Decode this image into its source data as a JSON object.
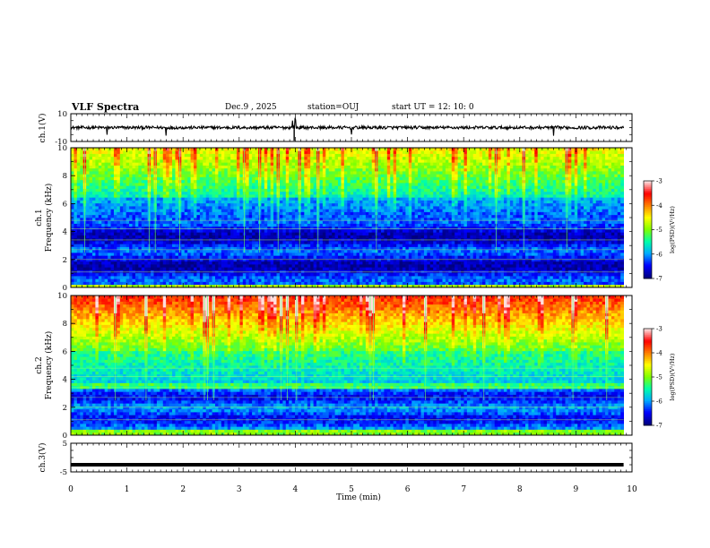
{
  "header": {
    "title": "VLF Spectra",
    "date": "Dec.9 , 2025",
    "station": "station=OUJ",
    "start": "start UT =  12: 10: 0"
  },
  "chart_data": [
    {
      "type": "line",
      "name": "ch1-waveform",
      "ylabel": "ch.1(V)",
      "ylim": [
        -10,
        10
      ],
      "yticks": [
        10,
        -10
      ],
      "xlim": [
        0,
        10
      ],
      "level": 0,
      "spikes_min": [
        3.95,
        4.0,
        5.0,
        0.65,
        1.7,
        8.6
      ]
    },
    {
      "type": "heatmap",
      "name": "ch1-spectrogram",
      "ylabel": "ch.1 Frequency (kHz)",
      "ylim": [
        0,
        10
      ],
      "yticks": [
        0,
        2,
        4,
        6,
        8,
        10
      ],
      "xlim": [
        0,
        9.85
      ],
      "colorbar": {
        "label": "log(PSD)(V²/Hz)",
        "range": [
          -7,
          -3
        ],
        "ticks": [
          -3,
          -4,
          -5,
          -6,
          -7
        ]
      }
    },
    {
      "type": "heatmap",
      "name": "ch2-spectrogram",
      "ylabel": "ch.2 Frequency (kHz)",
      "ylim": [
        0,
        10
      ],
      "yticks": [
        0,
        2,
        4,
        6,
        8,
        10
      ],
      "xlim": [
        0,
        9.85
      ],
      "colorbar": {
        "label": "log(PSD)(V²/Hz)",
        "range": [
          -7,
          -3
        ],
        "ticks": [
          -3,
          -4,
          -5,
          -6,
          -7
        ]
      }
    },
    {
      "type": "line",
      "name": "ch3-waveform",
      "ylabel": "ch.3(V)",
      "ylim": [
        -5,
        5
      ],
      "yticks": [
        5,
        -5
      ],
      "xlim": [
        0,
        10
      ],
      "level": -2.5
    }
  ],
  "xaxis": {
    "label": "Time (min)",
    "ticks": [
      0,
      1,
      2,
      3,
      4,
      5,
      6,
      7,
      8,
      9,
      10
    ]
  },
  "colors": {
    "axis": "#000000",
    "colormap": [
      "#000080",
      "#0000ff",
      "#00aaff",
      "#00ffaa",
      "#80ff00",
      "#ffff00",
      "#ff8000",
      "#ff0000",
      "#ffdddd"
    ]
  }
}
